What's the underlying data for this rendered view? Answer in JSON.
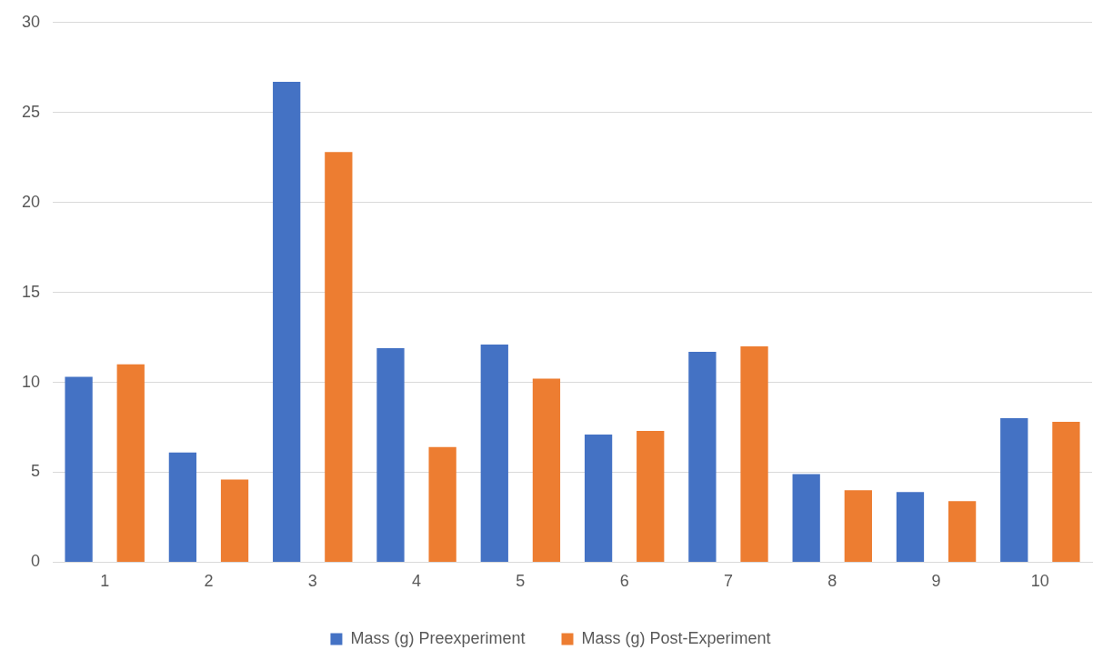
{
  "chart_data": {
    "type": "bar",
    "categories": [
      "1",
      "2",
      "3",
      "4",
      "5",
      "6",
      "7",
      "8",
      "9",
      "10"
    ],
    "series": [
      {
        "name": "Mass (g) Preexperiment",
        "color": "#4472c4",
        "values": [
          10.3,
          6.1,
          26.7,
          11.9,
          12.1,
          7.1,
          11.7,
          4.9,
          3.9,
          8.0
        ]
      },
      {
        "name": "Mass (g) Post-Experiment",
        "color": "#ed7d31",
        "values": [
          11.0,
          4.6,
          22.8,
          6.4,
          10.2,
          7.3,
          12.0,
          4.0,
          3.4,
          7.8
        ]
      }
    ],
    "ylim": [
      0,
      30
    ],
    "yticks": [
      0,
      5,
      10,
      15,
      20,
      25,
      30
    ],
    "grid": "y",
    "legend": "bottom"
  }
}
